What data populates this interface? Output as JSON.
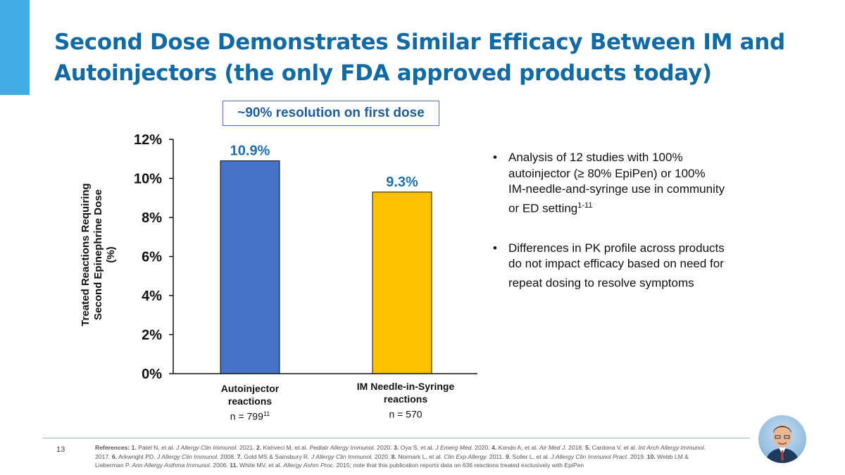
{
  "slide": {
    "title": "Second Dose Demonstrates Similar Efficacy Between IM and Autoinjectors (the only FDA approved products today)",
    "callout": "~90% resolution on first dose",
    "page_number": "13",
    "accent_color": "#41ace6",
    "title_color": "#0f6aa5"
  },
  "chart_data": {
    "type": "bar",
    "title": "",
    "ylabel_lines": [
      "Treated Reactions Requiring",
      "Second Epinephrine Dose",
      "(%)"
    ],
    "xlabel": "",
    "ylim": [
      0,
      12
    ],
    "yticks": [
      0,
      2,
      4,
      6,
      8,
      10,
      12
    ],
    "ytick_labels": [
      "0%",
      "2%",
      "4%",
      "6%",
      "8%",
      "10%",
      "12%"
    ],
    "categories": [
      {
        "line1": "Autoinjector",
        "line2": "reactions",
        "n": "n = 799",
        "n_sup": "11"
      },
      {
        "line1": "IM Needle-in-Syringe",
        "line2": "reactions",
        "n": "n = 570",
        "n_sup": ""
      }
    ],
    "values": [
      10.9,
      9.3
    ],
    "data_labels": [
      "10.9%",
      "9.3%"
    ],
    "colors": [
      "#4472c4",
      "#ffc000"
    ],
    "grid": false
  },
  "bullets": [
    {
      "text": "Analysis of 12 studies with 100% autoinjector (≥ 80% EpiPen) or 100% IM-needle-and-syringe use in community or ED setting",
      "sup": "1-11"
    },
    {
      "text": "Differences in PK profile across products do not impact efficacy based on need for repeat dosing to resolve symptoms",
      "sup": ""
    }
  ],
  "references": {
    "label": "References:",
    "items": [
      {
        "num": "1.",
        "pre": "Patel N, et al.",
        "journal": "J Allergy Clin Immunol.",
        "post": "2021."
      },
      {
        "num": "2.",
        "pre": "Kahveci M, et al.",
        "journal": "Pediatr Allergy Immunol.",
        "post": "2020."
      },
      {
        "num": "3.",
        "pre": "Oya S, et al.",
        "journal": "J Emerg Med.",
        "post": "2020."
      },
      {
        "num": "4.",
        "pre": "Kondo A, et al.",
        "journal": "Air Med J.",
        "post": "2018."
      },
      {
        "num": "5.",
        "pre": "Cardona V, et al.",
        "journal": "Int Arch Allergy Immunol.",
        "post": "2017."
      },
      {
        "num": "6.",
        "pre": "Arkwright PD.",
        "journal": "J Allergy Clin Immunol.",
        "post": "2008."
      },
      {
        "num": "7.",
        "pre": "Gold MS & Sainsbury R.",
        "journal": "J Allergy Clin Immunol.",
        "post": "2020."
      },
      {
        "num": "8.",
        "pre": "Noimark L, et al.",
        "journal": "Clin Exp Allergy.",
        "post": "2011."
      },
      {
        "num": "9.",
        "pre": "Soller L, et al.",
        "journal": "J Allergy Clin Immunol Pract.",
        "post": "2019."
      },
      {
        "num": "10.",
        "pre": "Webb LM & Lieberman P.",
        "journal": "Ann Allergy Asthma Immunol.",
        "post": "2006."
      },
      {
        "num": "11.",
        "pre": "White MV, et al.",
        "journal": "Allergy Ashm Proc.",
        "post": "2015; note that this publication reports data on 636 reactions treated exclusively with EpiPen"
      }
    ]
  }
}
